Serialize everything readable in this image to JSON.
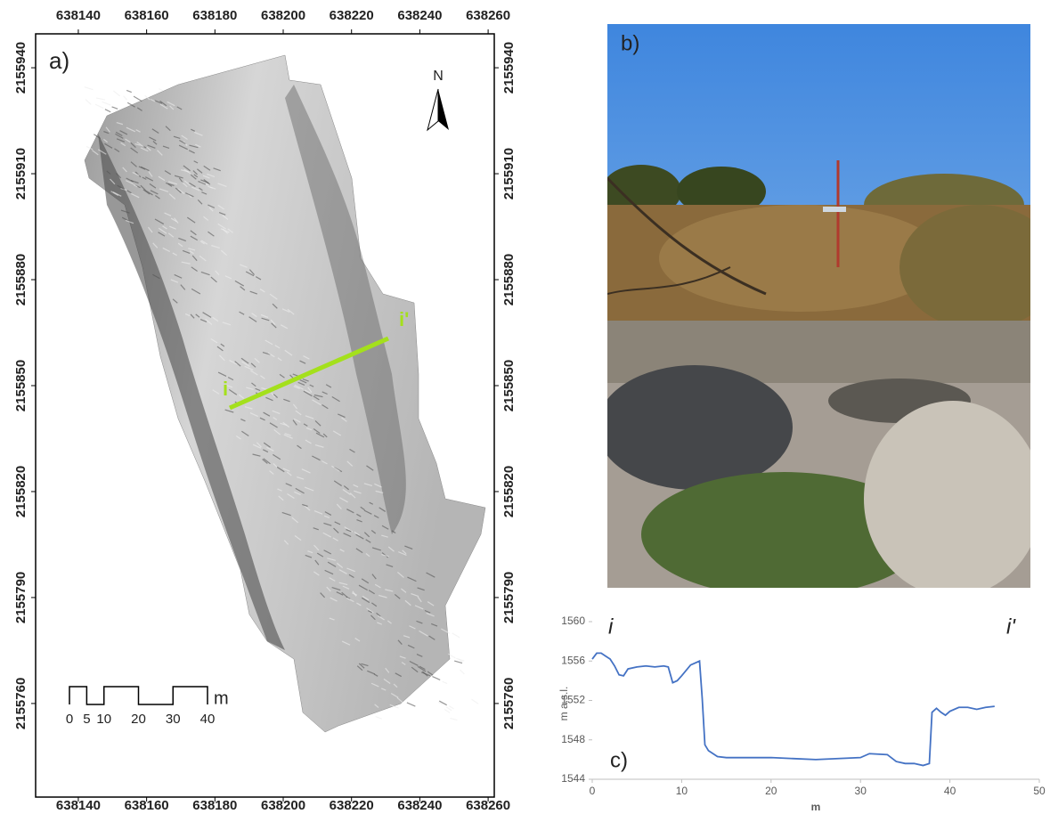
{
  "panel_a": {
    "label": "a)",
    "north": "N",
    "profile_start": "i",
    "profile_end": "i'",
    "xlim": [
      638127.5,
      638261.8
    ],
    "ylim": [
      2155733.5,
      2155949.6
    ],
    "xticks": [
      638140,
      638160,
      638180,
      638200,
      638220,
      638240,
      638260
    ],
    "yticks": [
      2155760,
      2155790,
      2155820,
      2155850,
      2155880,
      2155910,
      2155940
    ],
    "scale_bar": {
      "ticks": [
        0,
        5,
        10,
        20,
        30,
        40
      ],
      "unit": "m"
    }
  },
  "panel_b": {
    "label": "b)"
  },
  "chart_data": {
    "type": "line",
    "label": "c)",
    "start_label": "i",
    "end_label": "i'",
    "x_label": "m",
    "y_label": "m a.s.l.",
    "x": [
      0,
      0.5,
      1,
      1.5,
      2,
      2.5,
      3,
      3.5,
      4,
      5,
      6,
      7,
      8,
      8.5,
      9,
      9.5,
      10,
      11,
      12,
      12.3,
      12.6,
      13,
      14,
      15,
      20,
      25,
      30,
      31,
      33,
      34,
      35,
      36,
      37,
      37.7,
      38,
      38.5,
      39,
      39.5,
      40,
      41,
      42,
      43,
      44,
      45
    ],
    "series": [
      {
        "color": "#4472c4",
        "values": [
          1556.2,
          1556.8,
          1556.8,
          1556.5,
          1556.2,
          1555.5,
          1554.6,
          1554.5,
          1555.2,
          1555.4,
          1555.5,
          1555.4,
          1555.5,
          1555.4,
          1553.8,
          1554.0,
          1554.5,
          1555.6,
          1556.0,
          1552.2,
          1547.5,
          1546.9,
          1546.3,
          1546.2,
          1546.2,
          1546.0,
          1546.2,
          1546.6,
          1546.5,
          1545.8,
          1545.6,
          1545.6,
          1545.4,
          1545.6,
          1550.8,
          1551.2,
          1550.8,
          1550.5,
          1550.9,
          1551.3,
          1551.3,
          1551.1,
          1551.3,
          1551.4
        ]
      }
    ],
    "xlim": [
      0,
      50
    ],
    "ylim": [
      1544,
      1560
    ],
    "xticks": [
      0,
      10,
      20,
      30,
      40,
      50
    ],
    "yticks": [
      1544,
      1548,
      1552,
      1556,
      1560
    ]
  }
}
